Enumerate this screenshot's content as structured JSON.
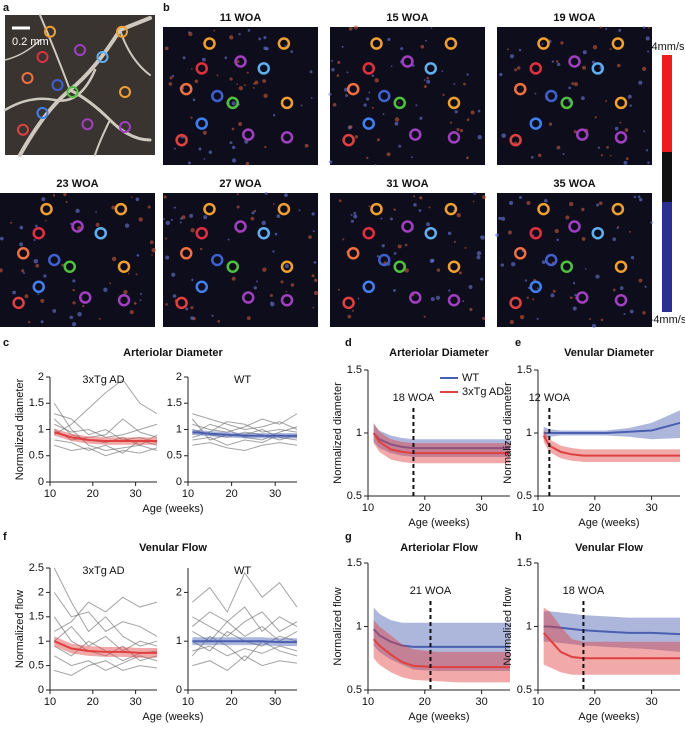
{
  "figure": {
    "panel_labels": [
      "a",
      "b",
      "c",
      "d",
      "e",
      "f",
      "g",
      "h"
    ],
    "scale_bar": "0.2 mm",
    "image_titles": [
      "11 WOA",
      "15 WOA",
      "19 WOA",
      "23 WOA",
      "27 WOA",
      "31 WOA",
      "35 WOA"
    ],
    "colorbar": {
      "max_label": "4mm/s",
      "min_label": "-4mm/s"
    }
  },
  "chart_data": [
    {
      "type": "line",
      "title": "Arteriolar Diameter",
      "subtitle": "3xTg AD",
      "xlabel": "Age (weeks)",
      "ylabel": "Normalized diameter",
      "x": [
        11,
        15,
        19,
        23,
        27,
        31,
        35
      ],
      "xlim": [
        10,
        35
      ],
      "xticks": [
        10,
        20,
        30
      ],
      "ylim": [
        0,
        2
      ],
      "yticks": [
        0,
        0.5,
        1,
        1.5,
        2
      ],
      "series": [
        {
          "color": "#666666",
          "values": [
            1.2,
            0.9,
            0.8,
            0.75,
            0.85,
            0.7,
            0.9
          ]
        },
        {
          "color": "#666666",
          "values": [
            0.9,
            1.1,
            1.4,
            1.7,
            1.95,
            1.5,
            1.3
          ]
        },
        {
          "color": "#666666",
          "values": [
            1.5,
            1.0,
            0.7,
            0.6,
            0.65,
            0.7,
            0.6
          ]
        },
        {
          "color": "#666666",
          "values": [
            0.8,
            0.75,
            0.6,
            0.7,
            0.55,
            0.8,
            0.7
          ]
        },
        {
          "color": "#666666",
          "values": [
            1.1,
            0.95,
            1.0,
            0.85,
            0.9,
            1.0,
            1.1
          ]
        },
        {
          "color": "#666666",
          "values": [
            0.7,
            0.6,
            0.65,
            0.5,
            0.6,
            0.55,
            0.65
          ]
        },
        {
          "color": "#666666",
          "values": [
            1.3,
            1.2,
            0.9,
            1.0,
            0.8,
            0.85,
            0.75
          ]
        },
        {
          "color": "#666666",
          "values": [
            1.0,
            0.8,
            0.85,
            0.9,
            1.2,
            0.95,
            0.85
          ]
        },
        {
          "color": "#e04040",
          "values": [
            0.95,
            0.85,
            0.8,
            0.78,
            0.78,
            0.78,
            0.78
          ],
          "lower": [
            0.88,
            0.78,
            0.73,
            0.71,
            0.71,
            0.71,
            0.71
          ],
          "upper": [
            1.02,
            0.92,
            0.87,
            0.85,
            0.85,
            0.85,
            0.85
          ]
        }
      ]
    },
    {
      "type": "line",
      "subtitle": "WT",
      "x": [
        11,
        15,
        19,
        23,
        27,
        31,
        35
      ],
      "xlim": [
        10,
        35
      ],
      "xticks": [
        10,
        20,
        30
      ],
      "ylim": [
        0,
        2
      ],
      "yticks": [
        0,
        0.5,
        1,
        1.5,
        2
      ],
      "series": [
        {
          "color": "#666666",
          "values": [
            1.1,
            1.0,
            0.95,
            1.05,
            1.2,
            1.1,
            1.3
          ]
        },
        {
          "color": "#666666",
          "values": [
            0.8,
            0.85,
            0.7,
            0.8,
            0.75,
            0.9,
            0.85
          ]
        },
        {
          "color": "#666666",
          "values": [
            1.3,
            1.2,
            1.1,
            1.0,
            1.05,
            1.15,
            1.0
          ]
        },
        {
          "color": "#666666",
          "values": [
            0.7,
            0.75,
            0.65,
            0.6,
            0.7,
            0.75,
            0.7
          ]
        },
        {
          "color": "#666666",
          "values": [
            1.0,
            0.9,
            0.85,
            0.95,
            0.9,
            0.8,
            0.9
          ]
        },
        {
          "color": "#666666",
          "values": [
            0.9,
            1.1,
            1.0,
            0.85,
            0.8,
            0.95,
            1.05
          ]
        },
        {
          "color": "#666666",
          "values": [
            1.2,
            0.8,
            0.9,
            0.9,
            1.0,
            0.85,
            0.8
          ]
        },
        {
          "color": "#666666",
          "values": [
            0.85,
            0.95,
            1.15,
            1.1,
            0.95,
            1.0,
            0.95
          ]
        },
        {
          "color": "#4a5fb0",
          "values": [
            0.95,
            0.92,
            0.9,
            0.88,
            0.88,
            0.88,
            0.88
          ],
          "lower": [
            0.9,
            0.87,
            0.85,
            0.83,
            0.83,
            0.83,
            0.83
          ],
          "upper": [
            1.0,
            0.97,
            0.95,
            0.93,
            0.93,
            0.93,
            0.93
          ]
        }
      ]
    },
    {
      "type": "line",
      "title": "Arteriolar Diameter",
      "xlabel": "Age (weeks)",
      "ylabel": "Normalized diameter",
      "x": [
        11,
        12,
        14,
        16,
        18,
        22,
        26,
        30,
        35
      ],
      "xlim": [
        10,
        35
      ],
      "xticks": [
        10,
        20,
        30
      ],
      "ylim": [
        0.5,
        1.5
      ],
      "yticks": [
        0.5,
        1,
        1.5
      ],
      "legend": "upper right",
      "annotation": {
        "x": 18,
        "text": "18 WOA"
      },
      "series": [
        {
          "name": "WT",
          "color": "#4a5fb0",
          "values": [
            1.0,
            0.95,
            0.91,
            0.89,
            0.88,
            0.88,
            0.88,
            0.88,
            0.88
          ],
          "lower": [
            0.93,
            0.88,
            0.84,
            0.82,
            0.81,
            0.81,
            0.81,
            0.81,
            0.81
          ],
          "upper": [
            1.07,
            1.02,
            0.98,
            0.96,
            0.95,
            0.95,
            0.95,
            0.95,
            0.95
          ]
        },
        {
          "name": "3xTg AD",
          "color": "#e04040",
          "values": [
            1.0,
            0.93,
            0.87,
            0.85,
            0.84,
            0.84,
            0.84,
            0.84,
            0.84
          ],
          "lower": [
            0.92,
            0.85,
            0.79,
            0.77,
            0.76,
            0.76,
            0.76,
            0.76,
            0.76
          ],
          "upper": [
            1.08,
            1.01,
            0.95,
            0.93,
            0.92,
            0.92,
            0.92,
            0.92,
            0.92
          ]
        }
      ]
    },
    {
      "type": "line",
      "title": "Venular Diameter",
      "xlabel": "Age (weeks)",
      "ylabel": "Normalized diameter",
      "x": [
        11,
        12,
        14,
        16,
        18,
        22,
        26,
        30,
        35
      ],
      "xlim": [
        10,
        35
      ],
      "xticks": [
        10,
        20,
        30
      ],
      "ylim": [
        0.5,
        1.5
      ],
      "yticks": [
        0.5,
        1,
        1.5
      ],
      "annotation": {
        "x": 12,
        "text": "12 WOA"
      },
      "series": [
        {
          "color": "#4a5fb0",
          "values": [
            1.0,
            1.0,
            1.0,
            1.0,
            1.0,
            1.0,
            1.01,
            1.02,
            1.08
          ],
          "lower": [
            0.95,
            0.97,
            0.98,
            0.98,
            0.98,
            0.98,
            0.97,
            0.95,
            0.96
          ],
          "upper": [
            1.05,
            1.03,
            1.02,
            1.02,
            1.02,
            1.02,
            1.04,
            1.08,
            1.18
          ]
        },
        {
          "color": "#e04040",
          "values": [
            0.98,
            0.9,
            0.85,
            0.83,
            0.82,
            0.82,
            0.82,
            0.82,
            0.82
          ],
          "lower": [
            0.93,
            0.85,
            0.8,
            0.78,
            0.77,
            0.77,
            0.77,
            0.77,
            0.77
          ],
          "upper": [
            1.03,
            0.95,
            0.9,
            0.88,
            0.87,
            0.87,
            0.87,
            0.87,
            0.87
          ]
        }
      ]
    },
    {
      "type": "line",
      "title": "Venular Flow",
      "subtitle": "3xTg AD",
      "xlabel": "Age (weeks)",
      "ylabel": "Normalized flow",
      "x": [
        11,
        15,
        19,
        23,
        27,
        31,
        35
      ],
      "xlim": [
        10,
        35
      ],
      "xticks": [
        10,
        20,
        30
      ],
      "ylim": [
        0,
        2.5
      ],
      "yticks": [
        0,
        0.5,
        1,
        1.5,
        2,
        2.5
      ],
      "series": [
        {
          "color": "#666666",
          "values": [
            2.5,
            1.8,
            1.2,
            1.5,
            1.1,
            0.9,
            1.0
          ]
        },
        {
          "color": "#666666",
          "values": [
            0.4,
            0.3,
            0.5,
            0.6,
            0.4,
            0.5,
            0.45
          ]
        },
        {
          "color": "#666666",
          "values": [
            1.5,
            1.0,
            0.8,
            0.7,
            0.9,
            0.6,
            0.7
          ]
        },
        {
          "color": "#666666",
          "values": [
            1.0,
            1.3,
            0.9,
            1.1,
            0.8,
            1.0,
            0.9
          ]
        },
        {
          "color": "#666666",
          "values": [
            0.7,
            0.5,
            0.6,
            0.4,
            0.55,
            0.7,
            0.6
          ]
        },
        {
          "color": "#666666",
          "values": [
            2.0,
            1.5,
            1.6,
            1.2,
            1.4,
            1.3,
            1.1
          ]
        },
        {
          "color": "#666666",
          "values": [
            0.9,
            0.7,
            1.0,
            0.8,
            0.6,
            0.75,
            0.8
          ]
        },
        {
          "color": "#666666",
          "values": [
            1.2,
            1.4,
            1.8,
            1.6,
            1.9,
            1.7,
            1.8
          ]
        },
        {
          "color": "#e04040",
          "values": [
            1.0,
            0.85,
            0.8,
            0.78,
            0.78,
            0.76,
            0.76
          ],
          "lower": [
            0.9,
            0.75,
            0.7,
            0.68,
            0.68,
            0.66,
            0.66
          ],
          "upper": [
            1.1,
            0.95,
            0.9,
            0.88,
            0.88,
            0.86,
            0.86
          ]
        }
      ]
    },
    {
      "type": "line",
      "subtitle": "WT",
      "x": [
        11,
        15,
        19,
        23,
        27,
        31,
        35
      ],
      "xlim": [
        10,
        35
      ],
      "xticks": [
        10,
        20,
        30
      ],
      "ylim": [
        0,
        2.5
      ],
      "yticks": [
        0,
        1,
        2
      ],
      "series": [
        {
          "color": "#666666",
          "values": [
            1.8,
            2.1,
            1.6,
            2.4,
            1.9,
            2.2,
            1.7
          ]
        },
        {
          "color": "#666666",
          "values": [
            0.5,
            0.6,
            0.4,
            0.7,
            0.5,
            0.6,
            0.55
          ]
        },
        {
          "color": "#666666",
          "values": [
            1.2,
            1.0,
            1.4,
            1.1,
            1.3,
            1.0,
            1.2
          ]
        },
        {
          "color": "#666666",
          "values": [
            0.8,
            0.9,
            0.7,
            0.85,
            0.75,
            0.9,
            0.8
          ]
        },
        {
          "color": "#666666",
          "values": [
            1.5,
            1.3,
            1.1,
            1.4,
            1.6,
            1.2,
            1.4
          ]
        },
        {
          "color": "#666666",
          "values": [
            0.7,
            1.1,
            0.9,
            0.6,
            1.0,
            0.8,
            0.7
          ]
        },
        {
          "color": "#666666",
          "values": [
            1.0,
            0.8,
            1.2,
            1.0,
            0.9,
            1.1,
            1.0
          ]
        },
        {
          "color": "#666666",
          "values": [
            1.3,
            1.6,
            1.4,
            1.7,
            1.2,
            1.5,
            1.3
          ]
        },
        {
          "color": "#4a5fb0",
          "values": [
            1.0,
            1.0,
            1.0,
            1.0,
            1.0,
            0.98,
            0.98
          ],
          "lower": [
            0.92,
            0.92,
            0.92,
            0.92,
            0.92,
            0.9,
            0.9
          ],
          "upper": [
            1.08,
            1.08,
            1.08,
            1.08,
            1.08,
            1.06,
            1.06
          ]
        }
      ]
    },
    {
      "type": "line",
      "title": "Arteriolar Flow",
      "xlabel": "Age (weeks)",
      "ylabel": "Normalized flow",
      "x": [
        11,
        12,
        14,
        16,
        18,
        22,
        26,
        30,
        35
      ],
      "xlim": [
        10,
        35
      ],
      "xticks": [
        10,
        20,
        30
      ],
      "ylim": [
        0.5,
        1.5
      ],
      "yticks": [
        0.5,
        1,
        1.5
      ],
      "annotation": {
        "x": 21,
        "text": "21 WOA"
      },
      "series": [
        {
          "color": "#4a5fb0",
          "values": [
            0.98,
            0.93,
            0.88,
            0.85,
            0.84,
            0.84,
            0.84,
            0.84,
            0.84
          ],
          "lower": [
            0.85,
            0.8,
            0.74,
            0.7,
            0.66,
            0.65,
            0.65,
            0.65,
            0.65
          ],
          "upper": [
            1.15,
            1.1,
            1.05,
            1.03,
            1.03,
            1.03,
            1.03,
            1.03,
            1.03
          ]
        },
        {
          "color": "#e04040",
          "values": [
            0.9,
            0.85,
            0.78,
            0.72,
            0.69,
            0.68,
            0.68,
            0.68,
            0.68
          ],
          "lower": [
            0.75,
            0.7,
            0.64,
            0.6,
            0.58,
            0.57,
            0.56,
            0.56,
            0.56
          ],
          "upper": [
            1.05,
            1.0,
            0.93,
            0.86,
            0.82,
            0.8,
            0.8,
            0.8,
            0.8
          ]
        }
      ]
    },
    {
      "type": "line",
      "title": "Venular Flow",
      "xlabel": "Age (weeks)",
      "ylabel": "Normalized flow",
      "x": [
        11,
        12,
        14,
        16,
        18,
        22,
        26,
        30,
        35
      ],
      "xlim": [
        10,
        35
      ],
      "xticks": [
        10,
        20,
        30
      ],
      "ylim": [
        0.5,
        1.5
      ],
      "yticks": [
        0.5,
        1,
        1.5
      ],
      "annotation": {
        "x": 18,
        "text": "18 WOA"
      },
      "series": [
        {
          "color": "#4a5fb0",
          "values": [
            1.0,
            1.0,
            0.99,
            0.98,
            0.97,
            0.96,
            0.95,
            0.95,
            0.94
          ],
          "lower": [
            0.88,
            0.88,
            0.87,
            0.86,
            0.85,
            0.84,
            0.83,
            0.82,
            0.8
          ],
          "upper": [
            1.12,
            1.12,
            1.11,
            1.1,
            1.09,
            1.08,
            1.07,
            1.07,
            1.07
          ]
        },
        {
          "color": "#e04040",
          "values": [
            0.95,
            0.9,
            0.8,
            0.76,
            0.75,
            0.75,
            0.75,
            0.75,
            0.75
          ],
          "lower": [
            0.7,
            0.68,
            0.64,
            0.62,
            0.62,
            0.62,
            0.62,
            0.62,
            0.62
          ],
          "upper": [
            1.15,
            1.12,
            1.0,
            0.9,
            0.88,
            0.88,
            0.88,
            0.88,
            0.88
          ]
        }
      ]
    }
  ]
}
